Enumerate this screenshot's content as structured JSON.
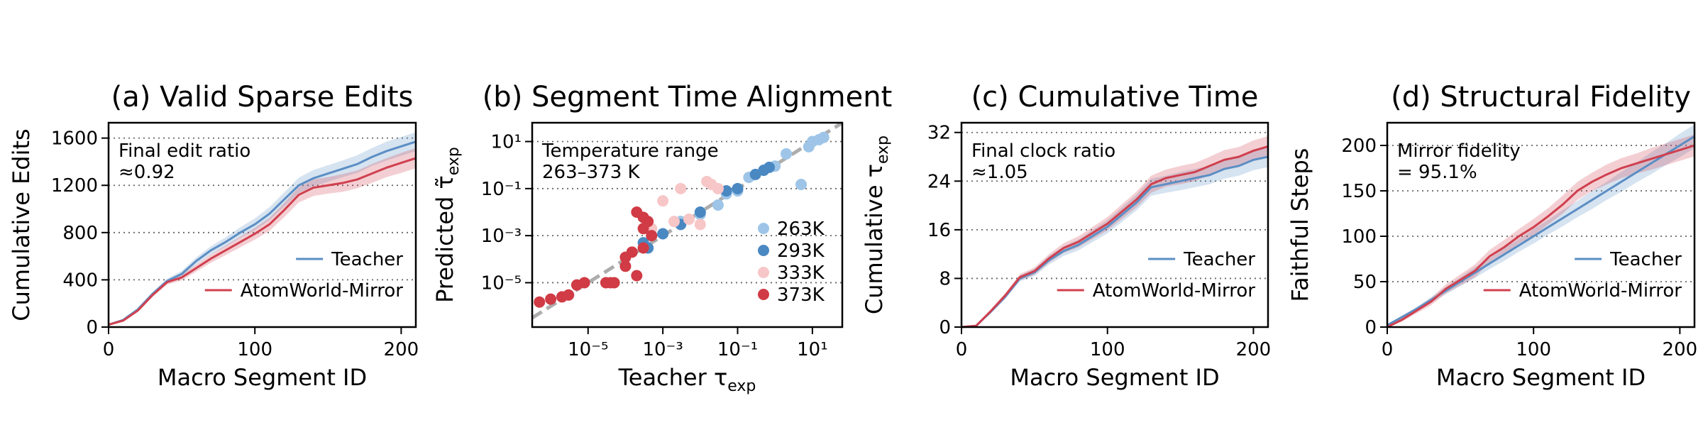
{
  "chart_data": [
    {
      "type": "line",
      "title": "(a) Valid Sparse Edits",
      "xlabel": "Macro Segment ID",
      "ylabel": "Cumulative Edits",
      "annotation": [
        "Final edit ratio",
        "≈0.92"
      ],
      "x": [
        0,
        10,
        20,
        30,
        40,
        50,
        60,
        70,
        80,
        90,
        100,
        110,
        120,
        130,
        140,
        150,
        160,
        170,
        180,
        190,
        200,
        210
      ],
      "series": [
        {
          "name": "Teacher",
          "color": "#5b8ec4",
          "values": [
            20,
            60,
            150,
            280,
            390,
            450,
            560,
            650,
            720,
            800,
            870,
            960,
            1080,
            1200,
            1260,
            1300,
            1340,
            1380,
            1440,
            1490,
            1530,
            1570
          ],
          "error": [
            0,
            5,
            10,
            15,
            20,
            25,
            30,
            35,
            40,
            45,
            50,
            55,
            60,
            65,
            70,
            70,
            70,
            75,
            75,
            80,
            80,
            80
          ]
        },
        {
          "name": "AtomWorld-Mirror",
          "color": "#d0404f",
          "values": [
            20,
            55,
            140,
            270,
            380,
            420,
            500,
            580,
            650,
            720,
            790,
            870,
            990,
            1120,
            1180,
            1200,
            1220,
            1250,
            1300,
            1350,
            1390,
            1430
          ],
          "error": [
            0,
            5,
            10,
            15,
            20,
            25,
            30,
            35,
            40,
            45,
            50,
            55,
            60,
            65,
            70,
            70,
            75,
            75,
            80,
            80,
            85,
            85
          ]
        }
      ],
      "xlim": [
        0,
        210
      ],
      "xticks": [
        0,
        100,
        200
      ],
      "ylim": [
        0,
        1730
      ],
      "yticks": [
        0,
        400,
        800,
        1200,
        1600
      ],
      "grid": true,
      "legend": "lower right"
    },
    {
      "type": "scatter",
      "title": "(b) Segment Time Alignment",
      "xlabel": {
        "text": "Teacher τ",
        "sub": "exp"
      },
      "ylabel": {
        "text": "Predicted τ̃",
        "sub": "exp"
      },
      "annotation": [
        "Temperature range",
        "263–373 K"
      ],
      "xscale": "log",
      "yscale": "log",
      "series": [
        {
          "name": "263K",
          "color": "#9ec5e8",
          "x": [
            0.003,
            0.01,
            0.03,
            0.05,
            0.1,
            0.2,
            0.5,
            1,
            2,
            5,
            8,
            10,
            15,
            20
          ],
          "values": [
            0.004,
            0.008,
            0.02,
            0.06,
            0.08,
            0.3,
            0.6,
            0.9,
            3,
            0.15,
            6,
            10,
            12,
            15
          ]
        },
        {
          "name": "293K",
          "color": "#4a88c2",
          "x": [
            0.0003,
            0.0004,
            0.0005,
            0.001,
            0.003,
            0.01,
            0.05,
            0.1,
            0.3,
            0.5,
            0.7
          ],
          "values": [
            0.0005,
            0.0003,
            0.001,
            0.0012,
            0.003,
            0.01,
            0.08,
            0.1,
            0.4,
            0.6,
            0.8
          ]
        },
        {
          "name": "333K",
          "color": "#f7c6c7",
          "x": [
            0.0005,
            0.001,
            0.002,
            0.003,
            0.005,
            0.01,
            0.015,
            0.02,
            0.03
          ],
          "values": [
            0.002,
            0.03,
            0.004,
            0.1,
            0.005,
            0.003,
            0.2,
            0.15,
            0.1
          ]
        },
        {
          "name": "373K",
          "color": "#d03b45",
          "x": [
            5e-07,
            1e-06,
            2e-06,
            3e-06,
            5e-06,
            8e-06,
            3e-05,
            5e-05,
            0.0001,
            0.0001,
            0.00015,
            0.0002,
            0.0003,
            0.0003,
            0.0003,
            0.0004,
            0.0005,
            0.0002,
            4e-05
          ],
          "values": [
            1.5e-06,
            2e-06,
            2.5e-06,
            3e-06,
            8e-06,
            1e-05,
            1e-05,
            1e-05,
            5e-05,
            0.00012,
            0.0002,
            0.01,
            0.002,
            0.006,
            0.0003,
            0.004,
            0.001,
            2e-05,
            1e-05
          ]
        }
      ],
      "xlim": [
        3.2e-07,
        63
      ],
      "xticks": [
        {
          "value": 1e-05,
          "label": "10⁻⁵"
        },
        {
          "value": 0.001,
          "label": "10⁻³"
        },
        {
          "value": 0.1,
          "label": "10⁻¹"
        },
        {
          "value": 10,
          "label": "10¹"
        }
      ],
      "ylim": [
        1.3e-07,
        63
      ],
      "yticks": [
        {
          "value": 1e-05,
          "label": "10⁻⁵"
        },
        {
          "value": 0.001,
          "label": "10⁻³"
        },
        {
          "value": 0.1,
          "label": "10⁻¹"
        },
        {
          "value": 10,
          "label": "10¹"
        }
      ],
      "grid": true,
      "legend": "lower right"
    },
    {
      "type": "line",
      "title": "(c) Cumulative Time",
      "xlabel": "Macro Segment ID",
      "ylabel": {
        "text": "Cumulative τ",
        "sub": "exp"
      },
      "annotation": [
        "Final clock ratio",
        "≈1.05"
      ],
      "x": [
        0,
        10,
        20,
        30,
        40,
        50,
        60,
        70,
        80,
        90,
        100,
        110,
        120,
        130,
        140,
        150,
        160,
        170,
        180,
        190,
        200,
        210
      ],
      "series": [
        {
          "name": "Teacher",
          "color": "#5b8ec4",
          "values": [
            0,
            0.2,
            2.5,
            5,
            8,
            9,
            11,
            12.5,
            13.5,
            15,
            16.5,
            18.5,
            20.5,
            23,
            23.5,
            24,
            24.5,
            25,
            26,
            26.5,
            27.5,
            28
          ],
          "error": [
            0,
            0.1,
            0.3,
            0.4,
            0.5,
            0.6,
            0.7,
            0.8,
            0.9,
            1.0,
            1.1,
            1.2,
            1.3,
            1.4,
            1.4,
            1.5,
            1.5,
            1.5,
            1.6,
            1.6,
            1.7,
            1.7
          ]
        },
        {
          "name": "AtomWorld-Mirror",
          "color": "#d0404f",
          "values": [
            0,
            0.2,
            2.6,
            5.2,
            8.2,
            9.2,
            11.3,
            13,
            14,
            15.5,
            17,
            19,
            21,
            23.5,
            24.5,
            25,
            25.5,
            26.5,
            27.5,
            28,
            29,
            29.7
          ],
          "error": [
            0,
            0.1,
            0.3,
            0.4,
            0.5,
            0.6,
            0.7,
            0.8,
            0.9,
            1.0,
            1.1,
            1.2,
            1.3,
            1.4,
            1.4,
            1.5,
            1.5,
            1.5,
            1.6,
            1.6,
            1.7,
            1.7
          ]
        }
      ],
      "xlim": [
        0,
        210
      ],
      "xticks": [
        0,
        100,
        200
      ],
      "ylim": [
        0,
        33.6
      ],
      "yticks": [
        0,
        8,
        16,
        24,
        32
      ],
      "grid": true,
      "legend": "lower right"
    },
    {
      "type": "line",
      "title": "(d) Structural Fidelity",
      "xlabel": "Macro Segment ID",
      "ylabel": "Faithful Steps",
      "annotation": [
        "Mirror fidelity",
        "= 95.1%"
      ],
      "x": [
        0,
        10,
        20,
        30,
        40,
        50,
        60,
        70,
        80,
        90,
        100,
        110,
        120,
        130,
        140,
        150,
        160,
        170,
        180,
        190,
        200,
        210
      ],
      "series": [
        {
          "name": "Teacher",
          "color": "#5b8ec4",
          "values": [
            2,
            11,
            20,
            30,
            40,
            50,
            60,
            70,
            80,
            90,
            100,
            110,
            120,
            130,
            140,
            150,
            160,
            170,
            180,
            190,
            200,
            210
          ],
          "error": [
            0,
            1,
            2,
            3,
            4,
            5,
            6,
            6,
            7,
            7,
            8,
            8,
            9,
            9,
            10,
            10,
            11,
            11,
            12,
            12,
            13,
            13
          ]
        },
        {
          "name": "AtomWorld-Mirror",
          "color": "#d0404f",
          "values": [
            0,
            8,
            18,
            28,
            42,
            52,
            62,
            78,
            88,
            100,
            110,
            122,
            135,
            150,
            160,
            168,
            175,
            180,
            185,
            190,
            195,
            200
          ],
          "error": [
            0,
            2,
            3,
            4,
            5,
            6,
            7,
            7,
            8,
            8,
            9,
            9,
            10,
            10,
            10,
            11,
            11,
            11,
            12,
            12,
            12,
            12
          ]
        }
      ],
      "xlim": [
        0,
        210
      ],
      "xticks": [
        0,
        100,
        200
      ],
      "ylim": [
        0,
        225
      ],
      "yticks": [
        0,
        50,
        100,
        150,
        200
      ],
      "grid": true,
      "legend": "lower right"
    }
  ]
}
